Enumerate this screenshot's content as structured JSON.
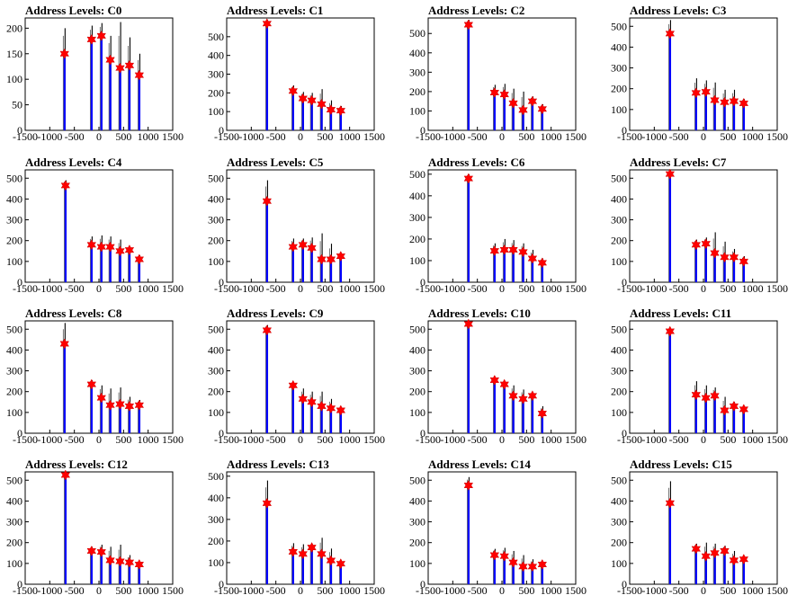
{
  "figure": {
    "axis_color": "#000000",
    "spike_color": "#000000",
    "fill_color": "#0000ff",
    "marker_color": "#ff0000"
  },
  "chart_data": [
    {
      "type": "bar",
      "title": "Address Levels: C0",
      "xlim": [
        -1500,
        1500
      ],
      "ylim": [
        0,
        220
      ],
      "xticks": [
        -1500,
        -1000,
        -500,
        0,
        500,
        1000,
        1500
      ],
      "yticks": [
        0,
        50,
        100,
        150,
        200
      ],
      "peaks": [
        {
          "x": -700,
          "y": 150,
          "top": 200
        },
        {
          "x": -150,
          "y": 178,
          "top": 205
        },
        {
          "x": 50,
          "y": 185,
          "top": 210
        },
        {
          "x": 230,
          "y": 138,
          "top": 185
        },
        {
          "x": 430,
          "y": 122,
          "top": 212
        },
        {
          "x": 620,
          "y": 127,
          "top": 182
        },
        {
          "x": 820,
          "y": 108,
          "top": 150
        }
      ]
    },
    {
      "type": "bar",
      "title": "Address Levels: C1",
      "xlim": [
        -1500,
        1500
      ],
      "ylim": [
        0,
        600
      ],
      "xticks": [
        -1500,
        -1000,
        -500,
        0,
        500,
        1000,
        1500
      ],
      "yticks": [
        0,
        100,
        200,
        300,
        400,
        500
      ],
      "peaks": [
        {
          "x": -680,
          "y": 570,
          "top": 590
        },
        {
          "x": -150,
          "y": 210,
          "top": 240
        },
        {
          "x": 50,
          "y": 170,
          "top": 205
        },
        {
          "x": 230,
          "y": 160,
          "top": 200
        },
        {
          "x": 430,
          "y": 140,
          "top": 220
        },
        {
          "x": 620,
          "y": 110,
          "top": 160
        },
        {
          "x": 820,
          "y": 105,
          "top": 130
        }
      ]
    },
    {
      "type": "bar",
      "title": "Address Levels: C2",
      "xlim": [
        -1500,
        1500
      ],
      "ylim": [
        0,
        580
      ],
      "xticks": [
        -1500,
        -1000,
        -500,
        0,
        500,
        1000,
        1500
      ],
      "yticks": [
        0,
        100,
        200,
        300,
        400,
        500
      ],
      "peaks": [
        {
          "x": -680,
          "y": 545,
          "top": 570
        },
        {
          "x": -150,
          "y": 195,
          "top": 235
        },
        {
          "x": 50,
          "y": 185,
          "top": 240
        },
        {
          "x": 230,
          "y": 140,
          "top": 215
        },
        {
          "x": 430,
          "y": 105,
          "top": 200
        },
        {
          "x": 620,
          "y": 150,
          "top": 175
        },
        {
          "x": 820,
          "y": 110,
          "top": 135
        }
      ]
    },
    {
      "type": "bar",
      "title": "Address Levels: C3",
      "xlim": [
        -1500,
        1500
      ],
      "ylim": [
        0,
        540
      ],
      "xticks": [
        -1500,
        -1000,
        -500,
        0,
        500,
        1000,
        1500
      ],
      "yticks": [
        0,
        100,
        200,
        300,
        400,
        500
      ],
      "peaks": [
        {
          "x": -680,
          "y": 465,
          "top": 530
        },
        {
          "x": -150,
          "y": 180,
          "top": 250
        },
        {
          "x": 50,
          "y": 185,
          "top": 240
        },
        {
          "x": 230,
          "y": 145,
          "top": 230
        },
        {
          "x": 430,
          "y": 135,
          "top": 195
        },
        {
          "x": 620,
          "y": 140,
          "top": 195
        },
        {
          "x": 820,
          "y": 130,
          "top": 150
        }
      ]
    },
    {
      "type": "bar",
      "title": "Address Levels: C4",
      "xlim": [
        -1500,
        1500
      ],
      "ylim": [
        0,
        540
      ],
      "xticks": [
        -1500,
        -1000,
        -500,
        0,
        500,
        1000,
        1500
      ],
      "yticks": [
        0,
        100,
        200,
        300,
        400,
        500
      ],
      "peaks": [
        {
          "x": -680,
          "y": 465,
          "top": 490
        },
        {
          "x": -150,
          "y": 180,
          "top": 220
        },
        {
          "x": 50,
          "y": 170,
          "top": 225
        },
        {
          "x": 230,
          "y": 170,
          "top": 220
        },
        {
          "x": 430,
          "y": 150,
          "top": 205
        },
        {
          "x": 620,
          "y": 155,
          "top": 170
        },
        {
          "x": 820,
          "y": 110,
          "top": 130
        }
      ]
    },
    {
      "type": "bar",
      "title": "Address Levels: C5",
      "xlim": [
        -1500,
        1500
      ],
      "ylim": [
        0,
        540
      ],
      "xticks": [
        -1500,
        -1000,
        -500,
        0,
        500,
        1000,
        1500
      ],
      "yticks": [
        0,
        100,
        200,
        300,
        400,
        500
      ],
      "peaks": [
        {
          "x": -680,
          "y": 390,
          "top": 490
        },
        {
          "x": -150,
          "y": 170,
          "top": 210
        },
        {
          "x": 50,
          "y": 180,
          "top": 210
        },
        {
          "x": 230,
          "y": 165,
          "top": 215
        },
        {
          "x": 430,
          "y": 110,
          "top": 235
        },
        {
          "x": 620,
          "y": 110,
          "top": 185
        },
        {
          "x": 820,
          "y": 125,
          "top": 140
        }
      ]
    },
    {
      "type": "bar",
      "title": "Address Levels: C6",
      "xlim": [
        -1500,
        1500
      ],
      "ylim": [
        0,
        520
      ],
      "xticks": [
        -1500,
        -1000,
        -500,
        0,
        500,
        1000,
        1500
      ],
      "yticks": [
        0,
        100,
        200,
        300,
        400,
        500
      ],
      "peaks": [
        {
          "x": -680,
          "y": 480,
          "top": 500
        },
        {
          "x": -150,
          "y": 145,
          "top": 180
        },
        {
          "x": 50,
          "y": 150,
          "top": 200
        },
        {
          "x": 230,
          "y": 150,
          "top": 195
        },
        {
          "x": 430,
          "y": 140,
          "top": 180
        },
        {
          "x": 620,
          "y": 110,
          "top": 150
        },
        {
          "x": 820,
          "y": 90,
          "top": 110
        }
      ]
    },
    {
      "type": "bar",
      "title": "Address Levels: C7",
      "xlim": [
        -1500,
        1500
      ],
      "ylim": [
        0,
        540
      ],
      "xticks": [
        -1500,
        -1000,
        -500,
        0,
        500,
        1000,
        1500
      ],
      "yticks": [
        0,
        100,
        200,
        300,
        400,
        500
      ],
      "peaks": [
        {
          "x": -680,
          "y": 520,
          "top": 535
        },
        {
          "x": -150,
          "y": 180,
          "top": 205
        },
        {
          "x": 50,
          "y": 185,
          "top": 215
        },
        {
          "x": 230,
          "y": 140,
          "top": 240
        },
        {
          "x": 430,
          "y": 120,
          "top": 195
        },
        {
          "x": 620,
          "y": 120,
          "top": 160
        },
        {
          "x": 820,
          "y": 100,
          "top": 125
        }
      ]
    },
    {
      "type": "bar",
      "title": "Address Levels: C8",
      "xlim": [
        -1500,
        1500
      ],
      "ylim": [
        0,
        540
      ],
      "xticks": [
        -1500,
        -1000,
        -500,
        0,
        500,
        1000,
        1500
      ],
      "yticks": [
        0,
        100,
        200,
        300,
        400,
        500
      ],
      "peaks": [
        {
          "x": -700,
          "y": 430,
          "top": 530
        },
        {
          "x": -150,
          "y": 235,
          "top": 255
        },
        {
          "x": 50,
          "y": 170,
          "top": 230
        },
        {
          "x": 230,
          "y": 135,
          "top": 215
        },
        {
          "x": 430,
          "y": 140,
          "top": 220
        },
        {
          "x": 620,
          "y": 130,
          "top": 175
        },
        {
          "x": 820,
          "y": 135,
          "top": 160
        }
      ]
    },
    {
      "type": "bar",
      "title": "Address Levels: C9",
      "xlim": [
        -1500,
        1500
      ],
      "ylim": [
        0,
        540
      ],
      "xticks": [
        -1500,
        -1000,
        -500,
        0,
        500,
        1000,
        1500
      ],
      "yticks": [
        0,
        100,
        200,
        300,
        400,
        500
      ],
      "peaks": [
        {
          "x": -680,
          "y": 495,
          "top": 520
        },
        {
          "x": -150,
          "y": 230,
          "top": 245
        },
        {
          "x": 50,
          "y": 165,
          "top": 215
        },
        {
          "x": 230,
          "y": 150,
          "top": 200
        },
        {
          "x": 430,
          "y": 130,
          "top": 200
        },
        {
          "x": 620,
          "y": 120,
          "top": 165
        },
        {
          "x": 820,
          "y": 110,
          "top": 125
        }
      ]
    },
    {
      "type": "bar",
      "title": "Address Levels: C10",
      "xlim": [
        -1500,
        1500
      ],
      "ylim": [
        0,
        540
      ],
      "xticks": [
        -1500,
        -1000,
        -500,
        0,
        500,
        1000,
        1500
      ],
      "yticks": [
        0,
        100,
        200,
        300,
        400,
        500
      ],
      "peaks": [
        {
          "x": -680,
          "y": 525,
          "top": 540
        },
        {
          "x": -150,
          "y": 255,
          "top": 270
        },
        {
          "x": 50,
          "y": 235,
          "top": 250
        },
        {
          "x": 230,
          "y": 180,
          "top": 230
        },
        {
          "x": 430,
          "y": 165,
          "top": 210
        },
        {
          "x": 620,
          "y": 180,
          "top": 190
        },
        {
          "x": 820,
          "y": 95,
          "top": 130
        }
      ]
    },
    {
      "type": "bar",
      "title": "Address Levels: C11",
      "xlim": [
        -1500,
        1500
      ],
      "ylim": [
        0,
        540
      ],
      "xticks": [
        -1500,
        -1000,
        -500,
        0,
        500,
        1000,
        1500
      ],
      "yticks": [
        0,
        100,
        200,
        300,
        400,
        500
      ],
      "peaks": [
        {
          "x": -680,
          "y": 490,
          "top": 500
        },
        {
          "x": -150,
          "y": 185,
          "top": 250
        },
        {
          "x": 50,
          "y": 170,
          "top": 230
        },
        {
          "x": 230,
          "y": 180,
          "top": 220
        },
        {
          "x": 430,
          "y": 110,
          "top": 175
        },
        {
          "x": 620,
          "y": 130,
          "top": 150
        },
        {
          "x": 820,
          "y": 115,
          "top": 130
        }
      ]
    },
    {
      "type": "bar",
      "title": "Address Levels: C12",
      "xlim": [
        -1500,
        1500
      ],
      "ylim": [
        0,
        540
      ],
      "xticks": [
        -1500,
        -1000,
        -500,
        0,
        500,
        1000,
        1500
      ],
      "yticks": [
        0,
        100,
        200,
        300,
        400,
        500
      ],
      "peaks": [
        {
          "x": -680,
          "y": 525,
          "top": 535
        },
        {
          "x": -150,
          "y": 160,
          "top": 180
        },
        {
          "x": 50,
          "y": 155,
          "top": 190
        },
        {
          "x": 230,
          "y": 115,
          "top": 180
        },
        {
          "x": 430,
          "y": 110,
          "top": 190
        },
        {
          "x": 620,
          "y": 105,
          "top": 140
        },
        {
          "x": 820,
          "y": 95,
          "top": 105
        }
      ]
    },
    {
      "type": "bar",
      "title": "Address Levels: C13",
      "xlim": [
        -1500,
        1500
      ],
      "ylim": [
        0,
        520
      ],
      "xticks": [
        -1500,
        -1000,
        -500,
        0,
        500,
        1000,
        1500
      ],
      "yticks": [
        0,
        100,
        200,
        300,
        400,
        500
      ],
      "peaks": [
        {
          "x": -680,
          "y": 375,
          "top": 480
        },
        {
          "x": -150,
          "y": 150,
          "top": 190
        },
        {
          "x": 50,
          "y": 140,
          "top": 185
        },
        {
          "x": 230,
          "y": 170,
          "top": 185
        },
        {
          "x": 430,
          "y": 140,
          "top": 215
        },
        {
          "x": 620,
          "y": 110,
          "top": 165
        },
        {
          "x": 820,
          "y": 95,
          "top": 110
        }
      ]
    },
    {
      "type": "bar",
      "title": "Address Levels: C14",
      "xlim": [
        -1500,
        1500
      ],
      "ylim": [
        0,
        540
      ],
      "xticks": [
        -1500,
        -1000,
        -500,
        0,
        500,
        1000,
        1500
      ],
      "yticks": [
        0,
        100,
        200,
        300,
        400,
        500
      ],
      "peaks": [
        {
          "x": -680,
          "y": 475,
          "top": 515
        },
        {
          "x": -150,
          "y": 140,
          "top": 170
        },
        {
          "x": 50,
          "y": 135,
          "top": 175
        },
        {
          "x": 230,
          "y": 105,
          "top": 160
        },
        {
          "x": 430,
          "y": 85,
          "top": 140
        },
        {
          "x": 620,
          "y": 85,
          "top": 120
        },
        {
          "x": 820,
          "y": 95,
          "top": 110
        }
      ]
    },
    {
      "type": "bar",
      "title": "Address Levels: C15",
      "xlim": [
        -1500,
        1500
      ],
      "ylim": [
        0,
        540
      ],
      "xticks": [
        -1500,
        -1000,
        -500,
        0,
        500,
        1000,
        1500
      ],
      "yticks": [
        0,
        100,
        200,
        300,
        400,
        500
      ],
      "peaks": [
        {
          "x": -680,
          "y": 390,
          "top": 495
        },
        {
          "x": -150,
          "y": 170,
          "top": 195
        },
        {
          "x": 50,
          "y": 135,
          "top": 200
        },
        {
          "x": 230,
          "y": 150,
          "top": 195
        },
        {
          "x": 430,
          "y": 160,
          "top": 185
        },
        {
          "x": 620,
          "y": 115,
          "top": 160
        },
        {
          "x": 820,
          "y": 120,
          "top": 130
        }
      ]
    }
  ]
}
